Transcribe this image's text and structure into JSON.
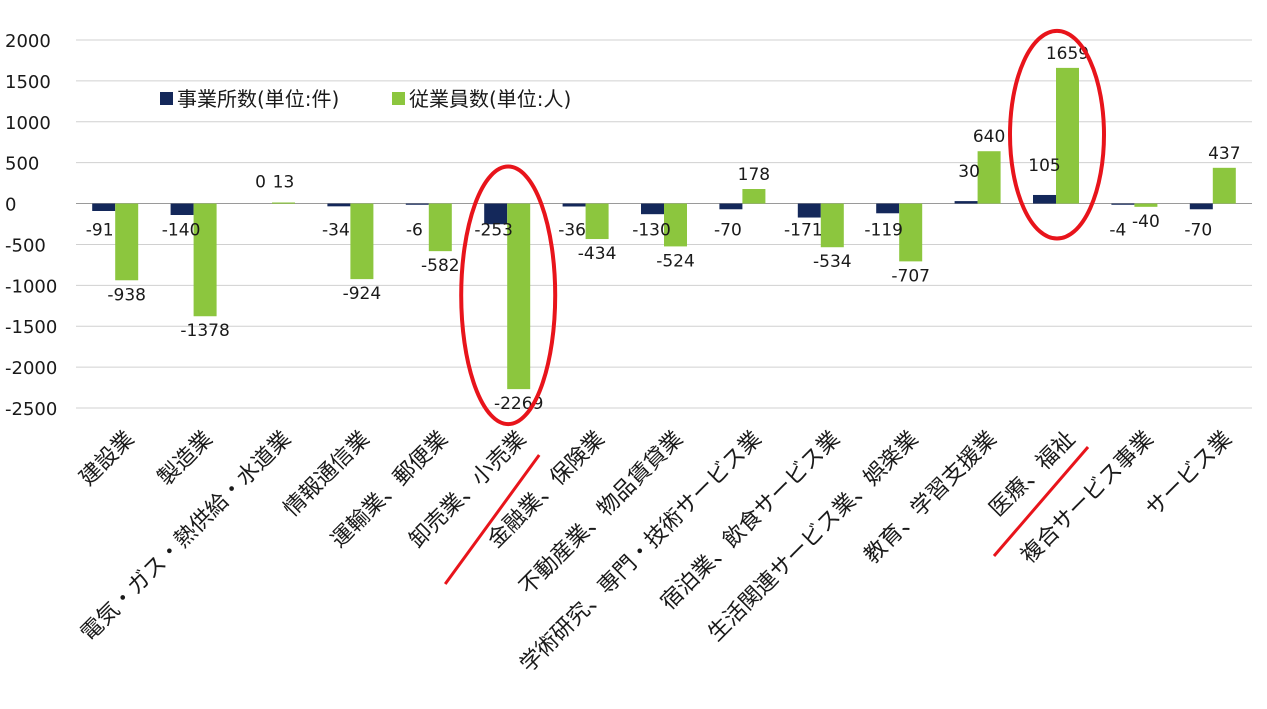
{
  "chart_data": {
    "type": "bar",
    "categories": [
      "建設業",
      "製造業",
      "電気・ガス・熱供給・水道業",
      "情報通信業",
      "運輸業、郵便業",
      "卸売業、小売業",
      "金融業、保険業",
      "不動産業、物品賃貸業",
      "学術研究、専門・技術サービス業",
      "宿泊業、飲食サービス業",
      "生活関連サービス業、娯楽業",
      "教育、学習支援業",
      "医療、福祉",
      "複合サービス事業",
      "サービス業"
    ],
    "series": [
      {
        "name": "事業所数(単位:件)",
        "color": "#14285a",
        "values": [
          -91,
          -140,
          0,
          -34,
          -6,
          -253,
          -36,
          -130,
          -70,
          -171,
          -119,
          30,
          105,
          -4,
          -70
        ],
        "labels": [
          "-91",
          "-140",
          "0",
          "-34",
          "-6",
          "-253",
          "-36",
          "-130",
          "-70",
          "-171",
          "-119",
          "30",
          "105",
          "-4",
          "-70"
        ]
      },
      {
        "name": "従業員数(単位:人)",
        "color": "#8cc63e",
        "values": [
          -938,
          -1378,
          13,
          -924,
          -582,
          -2269,
          -434,
          -524,
          178,
          -534,
          -707,
          640,
          1659,
          -40,
          437
        ],
        "labels": [
          "-938",
          "-1378",
          "13",
          "-924",
          "-582",
          "-2269",
          "-434",
          "-524",
          "178",
          "-534",
          "-707",
          "640",
          "1659",
          "-40",
          "437"
        ]
      }
    ],
    "ylim": [
      -2500,
      2000
    ],
    "yticks": [
      "2000",
      "1500",
      "1000",
      "500",
      "0",
      "-500",
      "-1000",
      "-1500",
      "-2000",
      "-2500"
    ],
    "grid": true,
    "legend_position": "top-left",
    "annotations": {
      "circle_color": "#e8141b",
      "highlighted_categories": [
        "卸売業、小売業",
        "医療、福祉"
      ]
    }
  }
}
